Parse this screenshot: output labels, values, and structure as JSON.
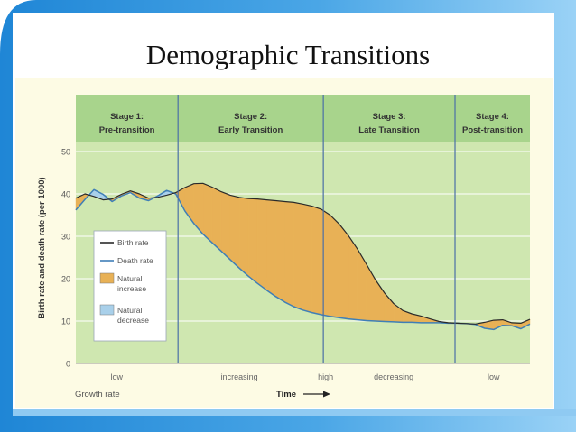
{
  "slide": {
    "title": "Demographic Transitions"
  },
  "colors": {
    "panel": "#fdfbe4",
    "plot": "#cfe7b0",
    "header": "#a8d48c",
    "stage_line": "#4a6fa6",
    "birth": "#2a2a2a",
    "death": "#3f7fb7",
    "natural_increase": "#e8b156",
    "natural_decrease": "#a9d0ea",
    "blue_band": "#2f8fd8",
    "blue_light": "#8ec9f2"
  },
  "chart_data": {
    "type": "area",
    "ylabel": "Birth rate and death rate (per 1000)",
    "xlabel": "Time",
    "ylim": [
      0,
      50
    ],
    "yticks": [
      "0",
      "10",
      "20",
      "30",
      "40",
      "50"
    ],
    "grid": true,
    "legend_position": "lower-left",
    "stages": [
      {
        "title": "Stage 1:",
        "subtitle": "Pre-transition",
        "x_range": [
          0,
          22.5
        ]
      },
      {
        "title": "Stage 2:",
        "subtitle": "Early Transition",
        "x_range": [
          22.5,
          54.5
        ]
      },
      {
        "title": "Stage 3:",
        "subtitle": "Late Transition",
        "x_range": [
          54.5,
          83.5
        ]
      },
      {
        "title": "Stage 4:",
        "subtitle": "Post-transition",
        "x_range": [
          83.5,
          100
        ]
      }
    ],
    "growth_rate_label": "Growth rate",
    "growth_rate": [
      {
        "label": "low",
        "x": 9
      },
      {
        "label": "increasing",
        "x": 36
      },
      {
        "label": "high",
        "x": 55
      },
      {
        "label": "decreasing",
        "x": 70
      },
      {
        "label": "low",
        "x": 92
      }
    ],
    "series": [
      {
        "name": "Birth rate",
        "x": [
          0,
          2,
          4,
          6,
          8,
          10,
          12,
          14,
          16,
          18,
          20,
          22,
          24,
          26,
          28,
          30,
          32,
          34,
          36,
          38,
          40,
          42,
          44,
          46,
          48,
          50,
          52,
          54,
          56,
          58,
          60,
          62,
          64,
          66,
          68,
          70,
          72,
          74,
          76,
          78,
          80,
          82,
          84,
          86,
          88,
          90,
          92,
          94,
          96,
          98,
          100
        ],
        "values": [
          39.0,
          40.0,
          39.4,
          38.6,
          38.8,
          39.9,
          40.7,
          40.0,
          39.0,
          39.2,
          39.7,
          40.3,
          41.5,
          42.4,
          42.5,
          41.6,
          40.5,
          39.7,
          39.2,
          38.9,
          38.8,
          38.6,
          38.4,
          38.2,
          38.0,
          37.6,
          37.1,
          36.4,
          35.0,
          32.9,
          30.2,
          27.0,
          23.4,
          19.7,
          16.6,
          14.1,
          12.5,
          11.7,
          11.2,
          10.5,
          9.9,
          9.6,
          9.5,
          9.4,
          9.3,
          9.7,
          10.2,
          10.3,
          9.6,
          9.5,
          10.4
        ]
      },
      {
        "name": "Death rate",
        "x": [
          0,
          2,
          4,
          6,
          8,
          10,
          12,
          14,
          16,
          18,
          20,
          22,
          24,
          26,
          28,
          30,
          32,
          34,
          36,
          38,
          40,
          42,
          44,
          46,
          48,
          50,
          52,
          54,
          56,
          58,
          60,
          62,
          64,
          66,
          68,
          70,
          72,
          74,
          76,
          78,
          80,
          82,
          84,
          86,
          88,
          90,
          92,
          94,
          96,
          98,
          100
        ],
        "values": [
          36.2,
          38.7,
          41.0,
          39.9,
          38.2,
          39.5,
          40.3,
          39.0,
          38.4,
          39.5,
          40.8,
          40.0,
          36.0,
          33.0,
          30.5,
          28.5,
          26.5,
          24.5,
          22.5,
          20.6,
          18.9,
          17.3,
          15.8,
          14.5,
          13.4,
          12.6,
          12.0,
          11.5,
          11.1,
          10.8,
          10.5,
          10.3,
          10.1,
          10.0,
          9.9,
          9.8,
          9.7,
          9.7,
          9.6,
          9.6,
          9.6,
          9.5,
          9.5,
          9.4,
          9.2,
          8.3,
          8.0,
          9.0,
          8.9,
          8.2,
          9.3
        ]
      }
    ],
    "legend": [
      {
        "label": "Birth rate",
        "kind": "line",
        "color": "#2a2a2a"
      },
      {
        "label": "Death rate",
        "kind": "line",
        "color": "#3f7fb7"
      },
      {
        "label": "Natural increase",
        "lines": [
          "Natural",
          "increase"
        ],
        "kind": "patch",
        "color": "#e8b156"
      },
      {
        "label": "Natural decrease",
        "lines": [
          "Natural",
          "decrease"
        ],
        "kind": "patch",
        "color": "#a9d0ea"
      }
    ]
  }
}
